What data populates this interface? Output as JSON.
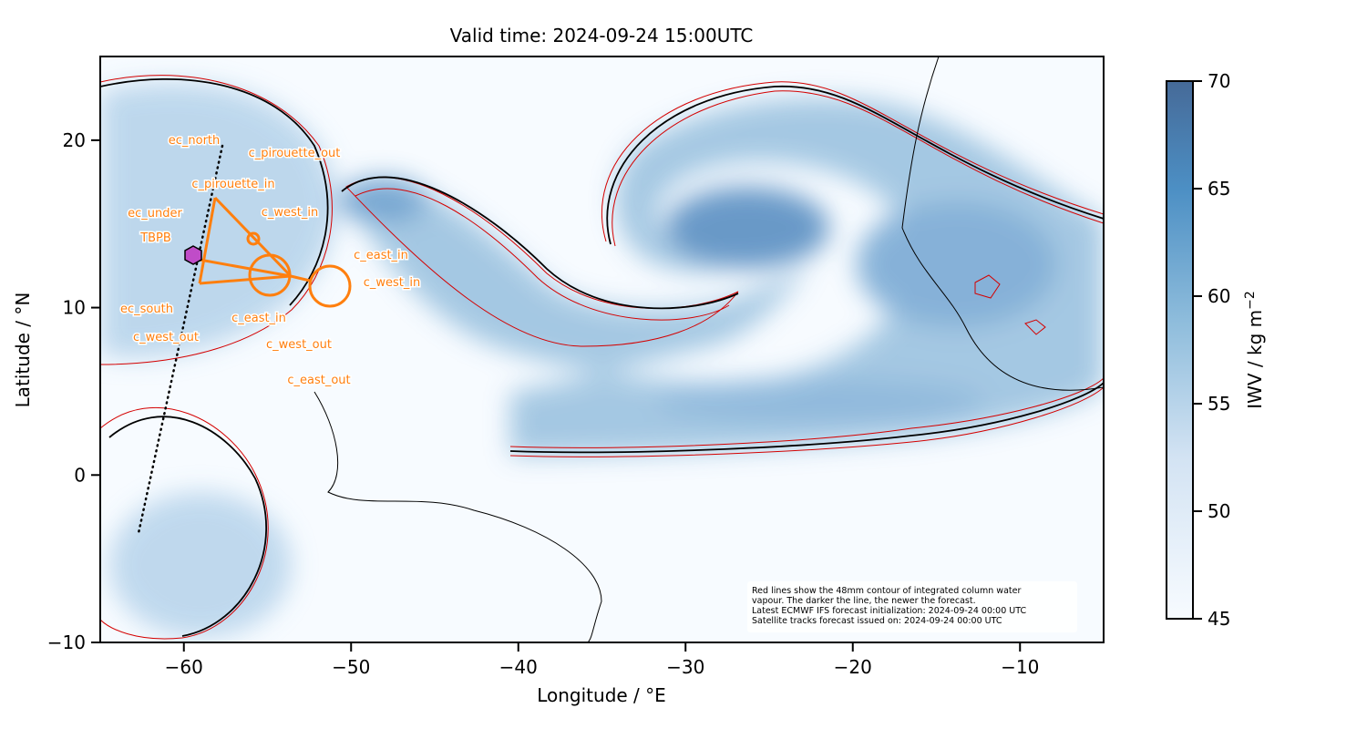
{
  "chart_data": {
    "type": "map",
    "title": "Valid time: 2024-09-24 15:00UTC",
    "x_label": "Longitude / °E",
    "y_label": "Latitude / °N",
    "xlim": [
      -65,
      -5
    ],
    "ylim": [
      -10,
      25
    ],
    "xticks": [
      {
        "value": -60,
        "label": "−60"
      },
      {
        "value": -50,
        "label": "−50"
      },
      {
        "value": -40,
        "label": "−40"
      },
      {
        "value": -30,
        "label": "−30"
      },
      {
        "value": -20,
        "label": "−20"
      },
      {
        "value": -10,
        "label": "−10"
      }
    ],
    "yticks": [
      {
        "value": -10,
        "label": "−10"
      },
      0,
      10,
      20
    ],
    "colorbar": {
      "label": "IWV / kg m",
      "label_superscript": "−2",
      "lim": [
        45,
        70
      ],
      "ticks": [
        45,
        50,
        55,
        60,
        65,
        70
      ],
      "colormap": "Blues"
    },
    "annotations": [
      "ec_north",
      "c_pirouette_out",
      "c_pirouette_in",
      "ec_under",
      "c_west_in",
      "TBPB",
      "c_east_in",
      "c_west_in",
      "ec_south",
      "c_east_in",
      "c_west_out",
      "c_west_out",
      "c_east_out"
    ],
    "track_color": "#ff7f0e",
    "note": [
      "Red lines show the 48mm contour of integrated column water",
      "vapour. The darker the line, the newer the forecast.",
      "Latest ECMWF IFS forecast initialization: 2024-09-24 00:00 UTC",
      "Satellite tracks forecast issued on: 2024-09-24 00:00 UTC"
    ]
  }
}
